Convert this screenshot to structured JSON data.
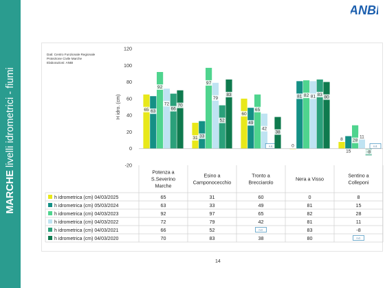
{
  "slide": {
    "title_bold": "MARCHE",
    "title_rest": " livelli idrometrici - fiumi",
    "page_number": "14",
    "logo_text": "ANBI",
    "source_lines": [
      "Dati: Centro Funzionale Regionale",
      "Protezione Civile Marche",
      "Elaborazioni: ANBI"
    ]
  },
  "chart_data": {
    "type": "bar",
    "ylabel": "H idro. (cm)",
    "ylim": [
      -20,
      120
    ],
    "yticks": [
      "-20",
      "0",
      "20",
      "40",
      "60",
      "80",
      "100",
      "120"
    ],
    "grid": false,
    "legend": "bottom (data table)",
    "na_label": "n.d.",
    "categories": [
      [
        "Potenza a",
        "S.Severino",
        "Marche"
      ],
      [
        "Esino a",
        "Camponocecchio"
      ],
      [
        "Tronto a",
        "Brecciarolo"
      ],
      [
        "Nera a Visso"
      ],
      [
        "Sentino a",
        "Colleponi"
      ]
    ],
    "series": [
      {
        "name": "h idrometrica (cm) 04/03/2025",
        "color": "#e8e81a",
        "values": [
          65,
          31,
          60,
          0,
          8
        ],
        "labels": [
          "65",
          "31",
          "60",
          "0",
          "8"
        ]
      },
      {
        "name": "h idrometrica (cm) 05/03/2024",
        "color": "#149085",
        "values": [
          63,
          33,
          49,
          81,
          15
        ],
        "labels": [
          "63",
          "33",
          "49",
          "81",
          "15"
        ]
      },
      {
        "name": "h idrometrica (cm) 04/03/2023",
        "color": "#4fd48e",
        "values": [
          92,
          97,
          65,
          82,
          28
        ],
        "labels": [
          "92",
          "97",
          "65",
          "82",
          "28"
        ]
      },
      {
        "name": "h idrometrica (cm) 04/03/2022",
        "color": "#bfe3f2",
        "values": [
          72,
          79,
          42,
          81,
          11
        ],
        "labels": [
          "72",
          "79",
          "42",
          "81",
          "11"
        ]
      },
      {
        "name": "h idrometrica (cm) 04/03/2021",
        "color": "#2aa07a",
        "values": [
          66,
          52,
          null,
          83,
          -8
        ],
        "labels": [
          "66",
          "52",
          "n.d.",
          "83",
          "-8"
        ]
      },
      {
        "name": "h idrometrica (cm) 04/03/2020",
        "color": "#0f7a4e",
        "values": [
          70,
          83,
          38,
          80,
          null
        ],
        "labels": [
          "70",
          "83",
          "38",
          "80",
          "n.d."
        ]
      }
    ]
  }
}
